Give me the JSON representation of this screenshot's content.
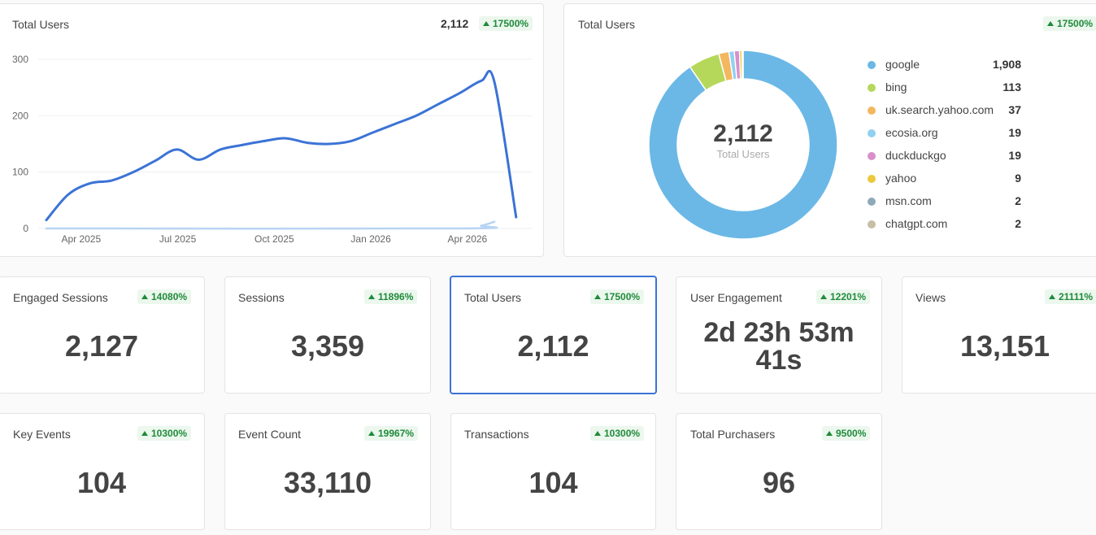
{
  "line_card": {
    "title": "Total Users",
    "value": "2,112",
    "change": "17500%",
    "chart_data": {
      "type": "line",
      "x_ticks": [
        "Apr 2025",
        "Jul 2025",
        "Oct 2025",
        "Jan 2026",
        "Apr 2026"
      ],
      "y_ticks": [
        "0",
        "100",
        "200",
        "300"
      ],
      "ylim": [
        0,
        300
      ],
      "series": [
        {
          "color": "#3b73d6",
          "values": [
            [
              0,
              15
            ],
            [
              0.5,
              60
            ],
            [
              1,
              80
            ],
            [
              1.5,
              85
            ],
            [
              2,
              100
            ],
            [
              2.5,
              120
            ],
            [
              3,
              140
            ],
            [
              3.5,
              122
            ],
            [
              4,
              140
            ],
            [
              4.5,
              148
            ],
            [
              5,
              155
            ],
            [
              5.5,
              160
            ],
            [
              6,
              152
            ],
            [
              6.5,
              150
            ],
            [
              7,
              155
            ],
            [
              7.5,
              170
            ],
            [
              8,
              185
            ],
            [
              8.5,
              200
            ],
            [
              9,
              220
            ],
            [
              9.5,
              240
            ],
            [
              10,
              262
            ],
            [
              10.3,
              260
            ],
            [
              10.8,
              20
            ]
          ]
        },
        {
          "color": "#b8d4f4",
          "values": [
            [
              0,
              0
            ],
            [
              9.5,
              0
            ],
            [
              10,
              5
            ],
            [
              10.3,
              12
            ]
          ]
        }
      ]
    }
  },
  "donut_card": {
    "title": "Total Users",
    "change": "17500%",
    "center_value": "2,112",
    "center_label": "Total Users",
    "chart_data": {
      "type": "pie",
      "labels": [
        "google",
        "bing",
        "uk.search.yahoo.com",
        "ecosia.org",
        "duckduckgo",
        "yahoo",
        "msn.com",
        "chatgpt.com"
      ],
      "values": [
        1908,
        113,
        37,
        19,
        19,
        9,
        2,
        2
      ],
      "colors": [
        "#6bb8e6",
        "#b5d85a",
        "#f3b760",
        "#90d0f3",
        "#d88fcb",
        "#ecc83c",
        "#8fa9bb",
        "#c6bfa4"
      ]
    },
    "legend": [
      {
        "name": "google",
        "value": "1,908",
        "color": "#6bb8e6"
      },
      {
        "name": "bing",
        "value": "113",
        "color": "#b5d85a"
      },
      {
        "name": "uk.search.yahoo.com",
        "value": "37",
        "color": "#f3b760"
      },
      {
        "name": "ecosia.org",
        "value": "19",
        "color": "#90d0f3"
      },
      {
        "name": "duckduckgo",
        "value": "19",
        "color": "#d88fcb"
      },
      {
        "name": "yahoo",
        "value": "9",
        "color": "#ecc83c"
      },
      {
        "name": "msn.com",
        "value": "2",
        "color": "#8fa9bb"
      },
      {
        "name": "chatgpt.com",
        "value": "2",
        "color": "#c6bfa4"
      }
    ]
  },
  "metrics": [
    {
      "title": "Engaged Sessions",
      "change": "14080%",
      "value": "2,127"
    },
    {
      "title": "Sessions",
      "change": "11896%",
      "value": "3,359"
    },
    {
      "title": "Total Users",
      "change": "17500%",
      "value": "2,112"
    },
    {
      "title": "User Engagement",
      "change": "12201%",
      "value_line1": "2d 23h 53m",
      "value_line2": "41s"
    },
    {
      "title": "Views",
      "change": "21111%",
      "value": "13,151"
    },
    {
      "title": "Key Events",
      "change": "10300%",
      "value": "104"
    },
    {
      "title": "Event Count",
      "change": "19967%",
      "value": "33,110"
    },
    {
      "title": "Transactions",
      "change": "10300%",
      "value": "104"
    },
    {
      "title": "Total Purchasers",
      "change": "9500%",
      "value": "96"
    }
  ]
}
